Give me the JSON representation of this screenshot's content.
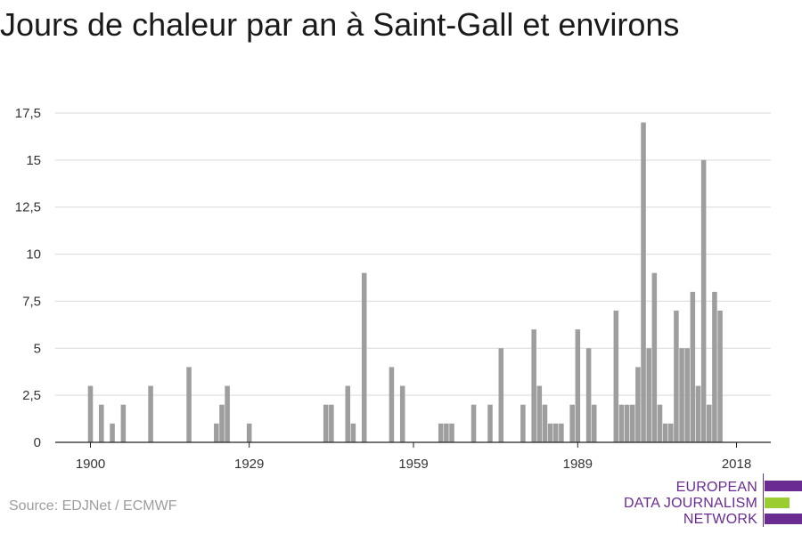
{
  "title": "Jours de chaleur par an à Saint-Gall et environs",
  "source": "Source: EDJNet / ECMWF",
  "logo": {
    "lines": [
      "EUROPEAN",
      "DATA JOURNALISM",
      "NETWORK"
    ],
    "colors": {
      "purple": "#6a2c91",
      "green": "#9acd32"
    }
  },
  "colors": {
    "bar": "#9e9e9e",
    "grid": "#d9d9d9",
    "axis": "#222222"
  },
  "chart_data": {
    "type": "bar",
    "title": "Jours de chaleur par an à Saint-Gall et environs",
    "xlabel": "",
    "ylabel": "",
    "xlim": [
      1900,
      2018
    ],
    "ylim": [
      0,
      17.5
    ],
    "yticks": [
      0,
      2.5,
      5,
      7.5,
      10,
      12.5,
      15,
      17.5
    ],
    "ytick_labels": [
      "0",
      "2,5",
      "5",
      "7,5",
      "10",
      "12,5",
      "15",
      "17,5"
    ],
    "xticks": [
      1900,
      1929,
      1959,
      1989,
      2018
    ],
    "grid": "horizontal",
    "x": [
      1900,
      1902,
      1904,
      1906,
      1911,
      1918,
      1923,
      1924,
      1925,
      1929,
      1943,
      1944,
      1947,
      1948,
      1950,
      1955,
      1957,
      1964,
      1965,
      1966,
      1970,
      1973,
      1975,
      1979,
      1981,
      1982,
      1983,
      1984,
      1985,
      1986,
      1988,
      1989,
      1991,
      1992,
      1996,
      1997,
      1998,
      1999,
      2000,
      2001,
      2002,
      2003,
      2004,
      2005,
      2006,
      2007,
      2008,
      2009,
      2010,
      2011,
      2012,
      2013,
      2014,
      2015,
      2016,
      2017
    ],
    "values": [
      3,
      2,
      1,
      2,
      3,
      4,
      1,
      2,
      3,
      1,
      2,
      2,
      3,
      1,
      9,
      4,
      3,
      1,
      1,
      1,
      2,
      2,
      5,
      2,
      6,
      3,
      2,
      1,
      1,
      1,
      2,
      6,
      5,
      2,
      7,
      2,
      2,
      2,
      4,
      17,
      5,
      9,
      2,
      1,
      1,
      7,
      5,
      5,
      8,
      3,
      15,
      2,
      8,
      7,
      0,
      0
    ]
  }
}
